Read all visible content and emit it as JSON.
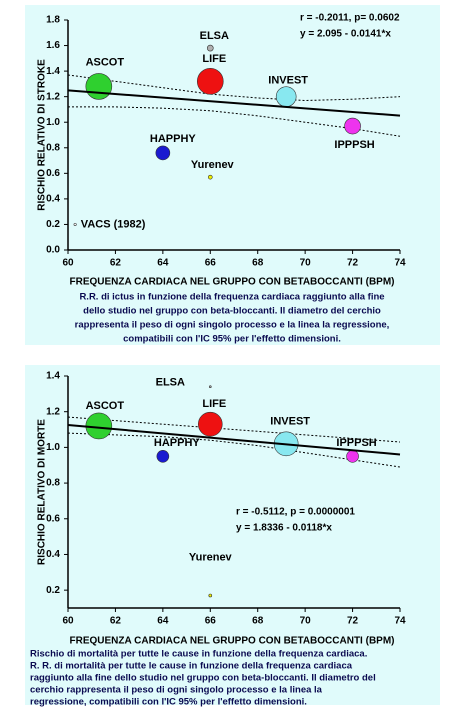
{
  "chart_data": [
    {
      "type": "scatter",
      "xlabel": "FREQUENZA CARDIACA NEL GRUPPO CON BETABOCCANTI (BPM)",
      "ylabel": "RISCHIO RELATIVO DI STROKE",
      "caption": [
        "R.R. di ictus in funzione della frequenza cardiaca raggiunto alla fine",
        "dello studio nel gruppo con beta-bloccanti. Il diametro del cerchio",
        "rappresenta il peso di ogni singolo processo e la linea la regressione,",
        "compatibili con l'IC 95% per l'effetto dimensioni."
      ],
      "annotations": [
        "r = -0.2011, p= 0.0602",
        "y = 2.095 - 0.0141*x"
      ],
      "xlim": [
        60,
        74
      ],
      "xticks": [
        60,
        62,
        64,
        66,
        68,
        70,
        72,
        74
      ],
      "ylim": [
        0,
        1.8
      ],
      "yticks": [
        {
          "value": 0,
          "label": "0.0"
        },
        0.2,
        0.4,
        0.6,
        0.8,
        {
          "value": 1,
          "label": "1.0"
        },
        1.2,
        1.4,
        1.6,
        1.8
      ],
      "labels": [
        "ASCOT",
        "ELSA",
        "LIFE",
        "INVEST",
        "IPPPSH",
        "HAPPHY",
        "Yurenev",
        "VACS (1982)"
      ],
      "x": [
        61.3,
        66,
        66,
        69.2,
        72,
        64,
        66,
        60.3
      ],
      "values": [
        1.28,
        1.58,
        1.32,
        1.2,
        0.97,
        0.76,
        0.57,
        0.2
      ],
      "sizes": [
        13,
        3,
        13,
        10,
        8,
        7,
        2,
        1.2
      ],
      "colors": [
        "#2fd02f",
        "#b0b0b0",
        "#ee1111",
        "#88e8f0",
        "#ee33ee",
        "#1a1ad0",
        "#f0f000",
        "#ffffff"
      ],
      "fit_x": [
        60,
        74
      ],
      "fit": [
        1.249,
        1.052
      ],
      "ci_x": [
        60,
        62,
        64,
        66,
        68,
        70,
        72,
        74
      ],
      "ci_upper": [
        1.37,
        1.32,
        1.27,
        1.22,
        1.19,
        1.17,
        1.18,
        1.2
      ],
      "ci_lower": [
        1.12,
        1.12,
        1.11,
        1.09,
        1.05,
        1.0,
        0.95,
        0.89
      ]
    },
    {
      "type": "scatter",
      "xlabel": "FREQUENZA CARDIACA NEL GRUPPO CON BETABOCCANTI (BPM)",
      "ylabel": "RISCHIO RELATIVO DI MORTE",
      "caption": [
        "Rischio di mortalità per tutte le cause in funzione della frequenza cardiaca.",
        "R. R. di mortalità per tutte le cause in funzione della frequenza cardiaca",
        "raggiunto alla fine dello studio nel gruppo con beta-bloccanti. Il diametro del",
        "cerchio rappresenta il peso di ogni singolo processo e la linea la",
        "regressione, compatibili con l'IC 95% per l'effetto dimensioni."
      ],
      "annotations": [
        "r = -0.5112, p = 0.0000001",
        "y = 1.8336 - 0.0118*x"
      ],
      "xlim": [
        60,
        74
      ],
      "xticks": [
        60,
        62,
        64,
        66,
        68,
        70,
        72,
        74
      ],
      "ylim": [
        0.1,
        1.4
      ],
      "yticks": [
        0.2,
        0.4,
        0.6,
        0.8,
        {
          "value": 1,
          "label": "1.0"
        },
        1.2,
        1.4
      ],
      "labels": [
        "ASCOT",
        "ELSA",
        "LIFE",
        "INVEST",
        "IPPPSH",
        "HAPPHY",
        "Yurenev"
      ],
      "x": [
        61.3,
        66,
        66,
        69.2,
        72,
        64,
        66
      ],
      "values": [
        1.12,
        1.34,
        1.13,
        1.02,
        0.95,
        0.95,
        0.17
      ],
      "sizes": [
        13,
        1,
        12,
        12,
        6,
        6,
        1.5
      ],
      "colors": [
        "#2fd02f",
        "#b0b0b0",
        "#ee1111",
        "#88e8f0",
        "#ee33ee",
        "#1a1ad0",
        "#f0f000"
      ],
      "fit_x": [
        60,
        74
      ],
      "fit": [
        1.1256,
        0.9604
      ],
      "ci_x": [
        60,
        62,
        64,
        66,
        68,
        70,
        72,
        74
      ],
      "ci_upper": [
        1.17,
        1.15,
        1.13,
        1.11,
        1.09,
        1.07,
        1.05,
        1.03
      ],
      "ci_lower": [
        1.08,
        1.07,
        1.06,
        1.04,
        1.01,
        0.97,
        0.93,
        0.89
      ]
    }
  ]
}
